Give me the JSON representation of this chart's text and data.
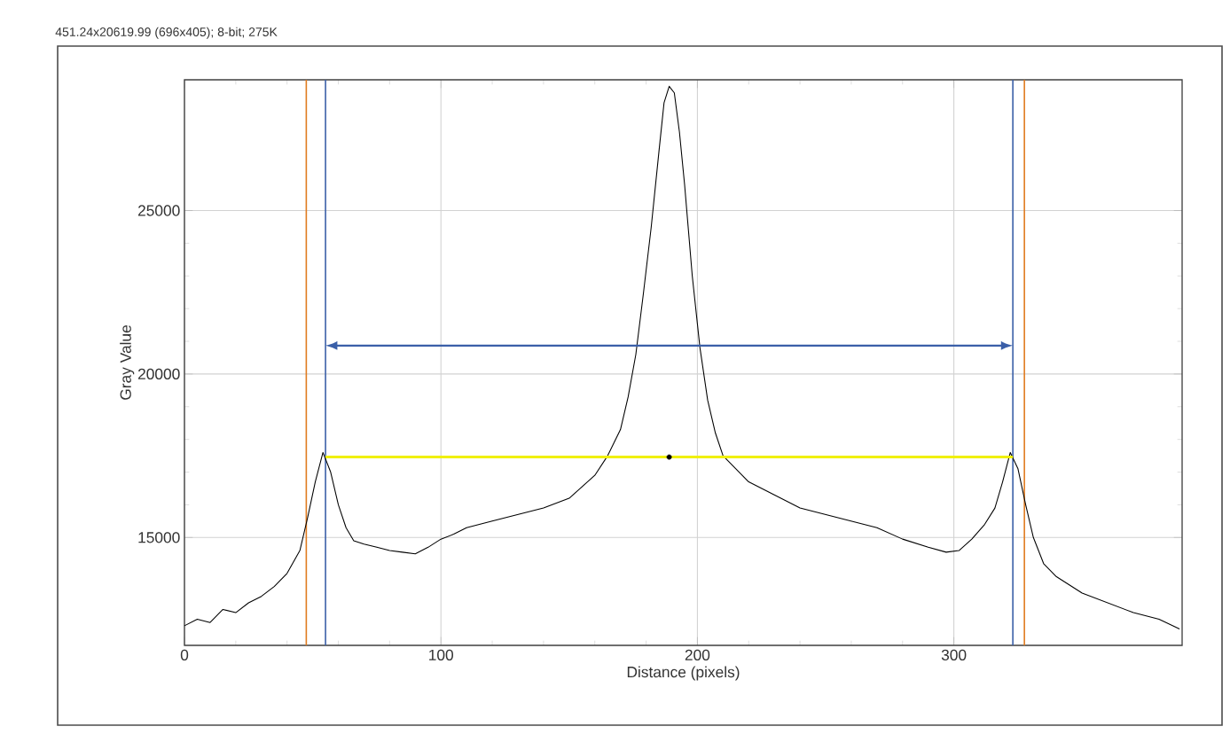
{
  "chart_data": {
    "type": "line",
    "title": "451.24x20619.99   (696x405); 8-bit; 275K",
    "xlabel": "Distance (pixels)",
    "ylabel": "Gray Value",
    "xlim": [
      0,
      389
    ],
    "ylim": [
      11700,
      29000
    ],
    "xticks": [
      0,
      100,
      200,
      300
    ],
    "yticks": [
      15000,
      20000,
      25000
    ],
    "grid": true,
    "marker": "none",
    "series": [
      {
        "color": "#000000",
        "x": [
          0,
          5,
          10,
          15,
          20,
          25,
          30,
          35,
          40,
          45,
          48,
          51,
          54,
          57,
          60,
          63,
          66,
          70,
          75,
          80,
          85,
          90,
          95,
          100,
          105,
          110,
          115,
          120,
          130,
          140,
          150,
          155,
          160,
          165,
          170,
          173,
          176,
          179,
          182,
          185,
          187,
          189,
          191,
          193,
          195,
          198,
          201,
          204,
          207,
          210,
          215,
          220,
          230,
          240,
          250,
          260,
          270,
          280,
          290,
          297,
          302,
          307,
          312,
          316,
          319,
          322,
          325,
          328,
          331,
          335,
          340,
          350,
          360,
          370,
          380,
          388
        ],
        "values": [
          12300,
          12500,
          12400,
          12800,
          12700,
          13000,
          13200,
          13500,
          13900,
          14600,
          15600,
          16700,
          17600,
          17000,
          16000,
          15300,
          14900,
          14800,
          14700,
          14600,
          14550,
          14500,
          14700,
          14950,
          15100,
          15300,
          15400,
          15500,
          15700,
          15900,
          16200,
          16550,
          16900,
          17500,
          18300,
          19300,
          20600,
          22500,
          24500,
          26800,
          28300,
          28800,
          28600,
          27400,
          25800,
          23000,
          20800,
          19200,
          18200,
          17500,
          17100,
          16700,
          16300,
          15900,
          15700,
          15500,
          15300,
          14950,
          14700,
          14550,
          14600,
          14950,
          15400,
          15900,
          16700,
          17600,
          17100,
          16000,
          15000,
          14200,
          13800,
          13300,
          13000,
          12700,
          12500,
          12200
        ]
      },
      {
        "type": "line",
        "color": "#f0f000",
        "x": [
          55,
          323
        ],
        "values": [
          17460,
          17460
        ]
      },
      {
        "type": "scatter",
        "color": "#000000",
        "x": [
          189
        ],
        "values": [
          17460
        ]
      }
    ],
    "ref_lines": [
      {
        "axis": "x",
        "value": 55,
        "color": "#3a5fa8"
      },
      {
        "axis": "x",
        "value": 323,
        "color": "#3a5fa8"
      },
      {
        "axis": "x",
        "value": 47.5,
        "color": "#e07b20"
      },
      {
        "axis": "x",
        "value": 327.5,
        "color": "#e07b20"
      }
    ]
  }
}
